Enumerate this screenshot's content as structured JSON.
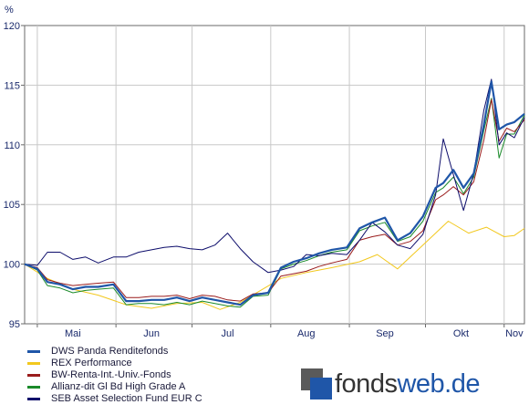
{
  "chart_data": {
    "type": "line",
    "ylabel": "%",
    "ylim": [
      95,
      120
    ],
    "yticks": [
      95,
      100,
      105,
      110,
      115,
      120
    ],
    "xlim": [
      "2006-04-26",
      "2006-11-09"
    ],
    "months": [
      {
        "label": "Mai",
        "start": "2006-05-01",
        "labelDate": "2006-05-15"
      },
      {
        "label": "Jun",
        "start": "2006-06-01",
        "labelDate": "2006-06-15"
      },
      {
        "label": "Jul",
        "start": "2006-07-01",
        "labelDate": "2006-07-15"
      },
      {
        "label": "Aug",
        "start": "2006-08-01",
        "labelDate": "2006-08-15"
      },
      {
        "label": "Sep",
        "start": "2006-09-01",
        "labelDate": "2006-09-15"
      },
      {
        "label": "Okt",
        "start": "2006-10-01",
        "labelDate": "2006-10-15"
      },
      {
        "label": "Nov",
        "start": "2006-11-01",
        "labelDate": "2006-11-05"
      }
    ],
    "grid": true,
    "legend_position": "bottom-left",
    "series": [
      {
        "name": "REX Performance",
        "color": "#f2c81e",
        "x": [
          "2006-04-26",
          "2006-05-05",
          "2006-05-15",
          "2006-05-25",
          "2006-06-05",
          "2006-06-15",
          "2006-06-25",
          "2006-07-05",
          "2006-07-12",
          "2006-07-20",
          "2006-07-28",
          "2006-08-05",
          "2006-08-15",
          "2006-08-25",
          "2006-09-05",
          "2006-09-12",
          "2006-09-20",
          "2006-09-28",
          "2006-10-05",
          "2006-10-10",
          "2006-10-18",
          "2006-10-25",
          "2006-11-01",
          "2006-11-05",
          "2006-11-09"
        ],
        "y": [
          100,
          98.8,
          97.9,
          97.4,
          96.6,
          96.3,
          96.7,
          96.8,
          96.2,
          96.8,
          97.8,
          98.8,
          99.3,
          99.7,
          100.2,
          100.8,
          99.6,
          101.2,
          102.6,
          103.6,
          102.6,
          103.1,
          102.3,
          102.4,
          103.0
        ]
      },
      {
        "name": "Allianz-dit Gl Bd High Grade A",
        "color": "#1a8a2a",
        "x": [
          "2006-04-26",
          "2006-05-01",
          "2006-05-05",
          "2006-05-10",
          "2006-05-15",
          "2006-05-20",
          "2006-05-25",
          "2006-05-31",
          "2006-06-05",
          "2006-06-10",
          "2006-06-15",
          "2006-06-20",
          "2006-06-25",
          "2006-06-30",
          "2006-07-05",
          "2006-07-10",
          "2006-07-15",
          "2006-07-20",
          "2006-07-25",
          "2006-07-31",
          "2006-08-05",
          "2006-08-10",
          "2006-08-15",
          "2006-08-20",
          "2006-08-25",
          "2006-08-31",
          "2006-09-05",
          "2006-09-10",
          "2006-09-15",
          "2006-09-20",
          "2006-09-25",
          "2006-09-30",
          "2006-10-05",
          "2006-10-08",
          "2006-10-12",
          "2006-10-16",
          "2006-10-20",
          "2006-10-24",
          "2006-10-27",
          "2006-10-30",
          "2006-11-02",
          "2006-11-05",
          "2006-11-09"
        ],
        "y": [
          100,
          99.5,
          98.2,
          98.0,
          97.6,
          97.8,
          97.9,
          98.0,
          96.6,
          96.7,
          96.7,
          96.6,
          96.8,
          96.6,
          96.9,
          96.7,
          96.5,
          96.4,
          97.3,
          97.4,
          99.6,
          100.0,
          100.3,
          100.7,
          101.0,
          101.2,
          102.8,
          103.2,
          103.5,
          101.9,
          102.3,
          103.6,
          106.0,
          106.4,
          107.3,
          105.9,
          107.3,
          111.2,
          113.9,
          108.9,
          110.9,
          110.9,
          112.5
        ]
      },
      {
        "name": "BW-Renta-Int.-Univ.-Fonds",
        "color": "#9a1c1c",
        "x": [
          "2006-04-26",
          "2006-05-01",
          "2006-05-05",
          "2006-05-10",
          "2006-05-15",
          "2006-05-20",
          "2006-05-25",
          "2006-05-31",
          "2006-06-05",
          "2006-06-10",
          "2006-06-15",
          "2006-06-20",
          "2006-06-25",
          "2006-06-30",
          "2006-07-05",
          "2006-07-10",
          "2006-07-15",
          "2006-07-20",
          "2006-07-25",
          "2006-07-31",
          "2006-08-05",
          "2006-08-10",
          "2006-08-15",
          "2006-08-20",
          "2006-08-25",
          "2006-08-31",
          "2006-09-05",
          "2006-09-10",
          "2006-09-15",
          "2006-09-20",
          "2006-09-25",
          "2006-09-30",
          "2006-10-05",
          "2006-10-08",
          "2006-10-12",
          "2006-10-16",
          "2006-10-20",
          "2006-10-24",
          "2006-10-27",
          "2006-10-30",
          "2006-11-02",
          "2006-11-05",
          "2006-11-09"
        ],
        "y": [
          100,
          99.7,
          98.7,
          98.4,
          98.2,
          98.3,
          98.4,
          98.5,
          97.2,
          97.2,
          97.3,
          97.3,
          97.4,
          97.1,
          97.4,
          97.3,
          97.0,
          96.9,
          97.5,
          97.6,
          99.0,
          99.2,
          99.4,
          99.8,
          100.1,
          100.4,
          102.0,
          102.3,
          102.5,
          101.6,
          101.9,
          102.8,
          105.4,
          105.8,
          106.5,
          105.8,
          106.9,
          110.4,
          113.8,
          110.3,
          111.4,
          111.1,
          112.1
        ]
      },
      {
        "name": "SEB Asset Selection Fund EUR C",
        "color": "#0d0d6b",
        "x": [
          "2006-04-26",
          "2006-05-01",
          "2006-05-05",
          "2006-05-10",
          "2006-05-15",
          "2006-05-20",
          "2006-05-25",
          "2006-05-31",
          "2006-06-05",
          "2006-06-10",
          "2006-06-15",
          "2006-06-20",
          "2006-06-25",
          "2006-06-30",
          "2006-07-05",
          "2006-07-10",
          "2006-07-15",
          "2006-07-20",
          "2006-07-25",
          "2006-07-31",
          "2006-08-05",
          "2006-08-10",
          "2006-08-15",
          "2006-08-20",
          "2006-08-25",
          "2006-08-31",
          "2006-09-05",
          "2006-09-10",
          "2006-09-15",
          "2006-09-20",
          "2006-09-25",
          "2006-09-30",
          "2006-10-05",
          "2006-10-08",
          "2006-10-12",
          "2006-10-16",
          "2006-10-20",
          "2006-10-24",
          "2006-10-27",
          "2006-10-30",
          "2006-11-02",
          "2006-11-05",
          "2006-11-09"
        ],
        "y": [
          100,
          99.9,
          101.0,
          101.0,
          100.4,
          100.6,
          100.1,
          100.6,
          100.6,
          101.0,
          101.2,
          101.4,
          101.5,
          101.3,
          101.2,
          101.6,
          102.6,
          101.3,
          100.2,
          99.3,
          99.5,
          99.8,
          100.8,
          100.7,
          100.9,
          100.8,
          102.0,
          103.5,
          102.7,
          101.6,
          101.3,
          102.5,
          105.8,
          110.5,
          107.5,
          104.5,
          107.6,
          112.9,
          115.5,
          110.0,
          111.0,
          110.6,
          112.3
        ]
      },
      {
        "name": "DWS Panda Renditefonds",
        "color": "#1f56a8",
        "x": [
          "2006-04-26",
          "2006-05-01",
          "2006-05-05",
          "2006-05-10",
          "2006-05-15",
          "2006-05-20",
          "2006-05-25",
          "2006-05-31",
          "2006-06-05",
          "2006-06-10",
          "2006-06-15",
          "2006-06-20",
          "2006-06-25",
          "2006-06-30",
          "2006-07-05",
          "2006-07-10",
          "2006-07-15",
          "2006-07-20",
          "2006-07-25",
          "2006-07-31",
          "2006-08-05",
          "2006-08-10",
          "2006-08-15",
          "2006-08-20",
          "2006-08-25",
          "2006-08-31",
          "2006-09-05",
          "2006-09-10",
          "2006-09-15",
          "2006-09-20",
          "2006-09-25",
          "2006-09-30",
          "2006-10-05",
          "2006-10-08",
          "2006-10-12",
          "2006-10-16",
          "2006-10-20",
          "2006-10-24",
          "2006-10-27",
          "2006-10-30",
          "2006-11-02",
          "2006-11-05",
          "2006-11-09"
        ],
        "y": [
          100,
          99.6,
          98.5,
          98.3,
          97.9,
          98.1,
          98.1,
          98.3,
          96.9,
          96.9,
          97.0,
          97.0,
          97.2,
          96.9,
          97.2,
          97.0,
          96.8,
          96.6,
          97.4,
          97.6,
          99.7,
          100.2,
          100.5,
          100.9,
          101.2,
          101.4,
          103.0,
          103.5,
          103.9,
          102.0,
          102.6,
          104.0,
          106.4,
          106.8,
          107.9,
          106.4,
          107.6,
          111.7,
          115.3,
          111.3,
          111.7,
          111.9,
          112.6
        ]
      }
    ],
    "legend": [
      {
        "name": "DWS Panda Renditefonds",
        "color": "#1f56a8"
      },
      {
        "name": "REX Performance",
        "color": "#f2c81e"
      },
      {
        "name": "BW-Renta-Int.-Univ.-Fonds",
        "color": "#9a1c1c"
      },
      {
        "name": "Allianz-dit Gl Bd High Grade A",
        "color": "#1a8a2a"
      },
      {
        "name": "SEB Asset Selection Fund EUR C",
        "color": "#0d0d6b"
      }
    ]
  },
  "logo": {
    "text_a": "fonds",
    "text_b": "web.de",
    "color_dark": "#333333",
    "color_blue": "#1f56a8"
  }
}
